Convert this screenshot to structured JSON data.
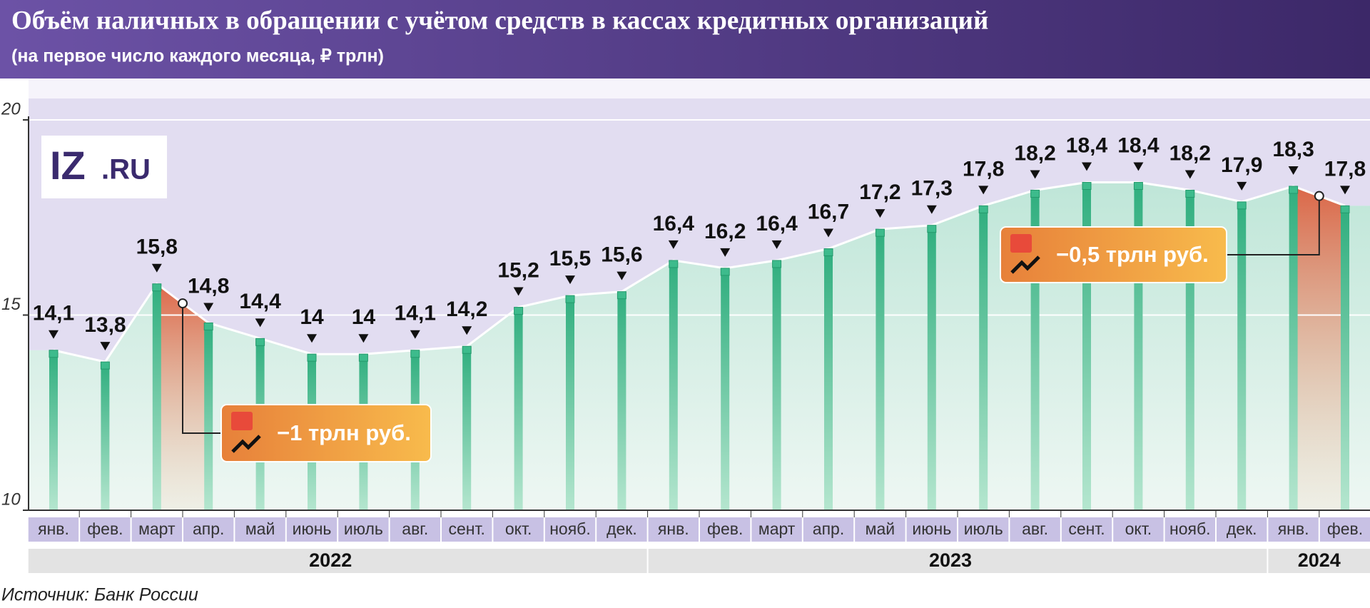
{
  "chart_data": {
    "type": "bar",
    "title": "Объём наличных в обращении с учётом средств в кассах кредитных организаций",
    "subtitle": "(на первое число каждого месяца, ₽ трлн)",
    "source": "Источник: Банк России",
    "logo": {
      "main": "IZ",
      "suffix": ".RU"
    },
    "categories": [
      "янв.",
      "фев.",
      "март",
      "апр.",
      "май",
      "июнь",
      "июль",
      "авг.",
      "сент.",
      "окт.",
      "нояб.",
      "дек.",
      "янв.",
      "фев.",
      "март",
      "апр.",
      "май",
      "июнь",
      "июль",
      "авг.",
      "сент.",
      "окт.",
      "нояб.",
      "дек.",
      "янв.",
      "фев."
    ],
    "years": [
      "2022",
      "2023",
      "2024"
    ],
    "values": [
      14.1,
      13.8,
      15.8,
      14.8,
      14.4,
      14,
      14,
      14.1,
      14.2,
      15.2,
      15.5,
      15.6,
      16.4,
      16.2,
      16.4,
      16.7,
      17.2,
      17.3,
      17.8,
      18.2,
      18.4,
      18.4,
      18.2,
      17.9,
      18.3,
      17.8
    ],
    "value_labels": [
      "14,1",
      "13,8",
      "15,8",
      "14,8",
      "14,4",
      "14",
      "14",
      "14,1",
      "14,2",
      "15,2",
      "15,5",
      "15,6",
      "16,4",
      "16,2",
      "16,4",
      "16,7",
      "17,2",
      "17,3",
      "17,8",
      "18,2",
      "18,4",
      "18,4",
      "18,2",
      "17,9",
      "18,3",
      "17,8"
    ],
    "annotations": [
      {
        "text": "−1 трлн руб."
      },
      {
        "text": "−0,5 трлн руб."
      }
    ],
    "color": "#3dbb8c",
    "ylim": [
      10,
      20
    ],
    "yticks": [
      10,
      15,
      20
    ]
  }
}
